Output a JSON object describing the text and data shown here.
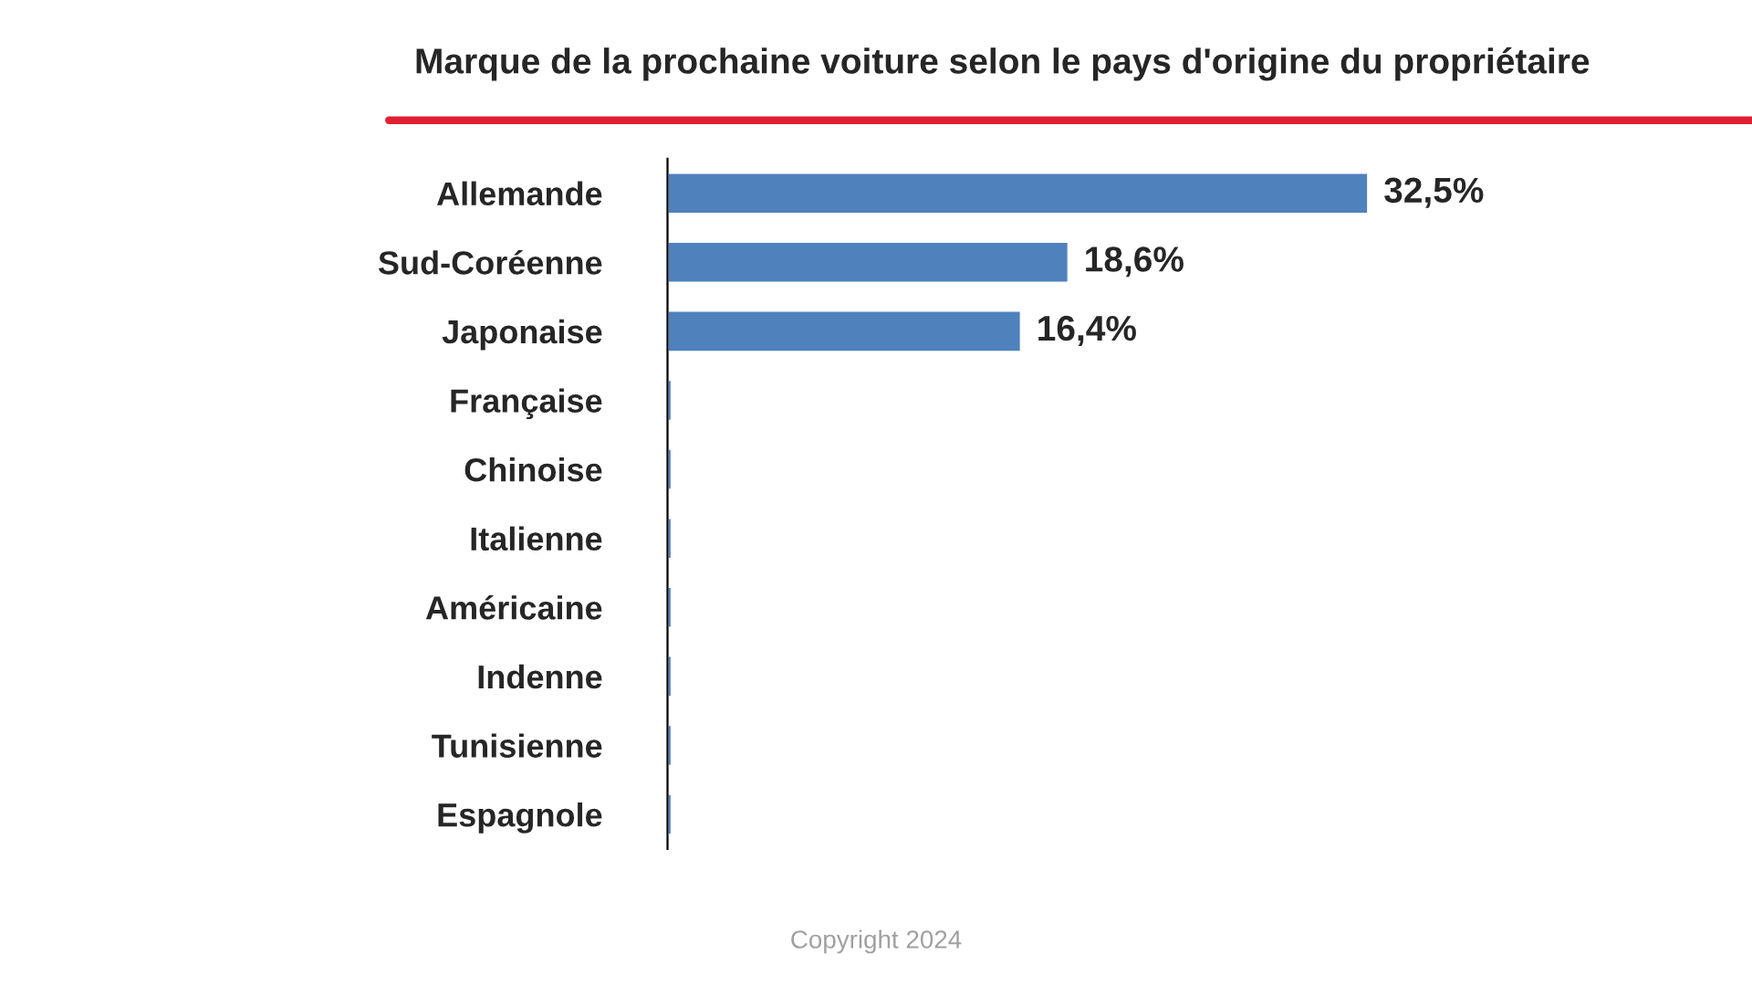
{
  "chart_data": {
    "type": "bar",
    "orientation": "horizontal",
    "title": "Marque de la prochaine voiture selon le pays d'origine du propriétaire",
    "categories": [
      "Allemande",
      "Sud-Coréenne",
      "Japonaise",
      "Française",
      "Chinoise",
      "Italienne",
      "Américaine",
      "Indenne",
      "Tunisienne",
      "Espagnole"
    ],
    "values": [
      32.5,
      18.6,
      16.4,
      0.2,
      0.2,
      0.2,
      0.2,
      0.2,
      0.2,
      0.2
    ],
    "value_labels": [
      "32,5%",
      "18,6%",
      "16,4%",
      null,
      null,
      null,
      null,
      null,
      null,
      null
    ],
    "color": "#4f81bd",
    "grid": false,
    "legend": false,
    "tick_labels": "y",
    "annotations": [
      "Copyright 2024"
    ]
  }
}
